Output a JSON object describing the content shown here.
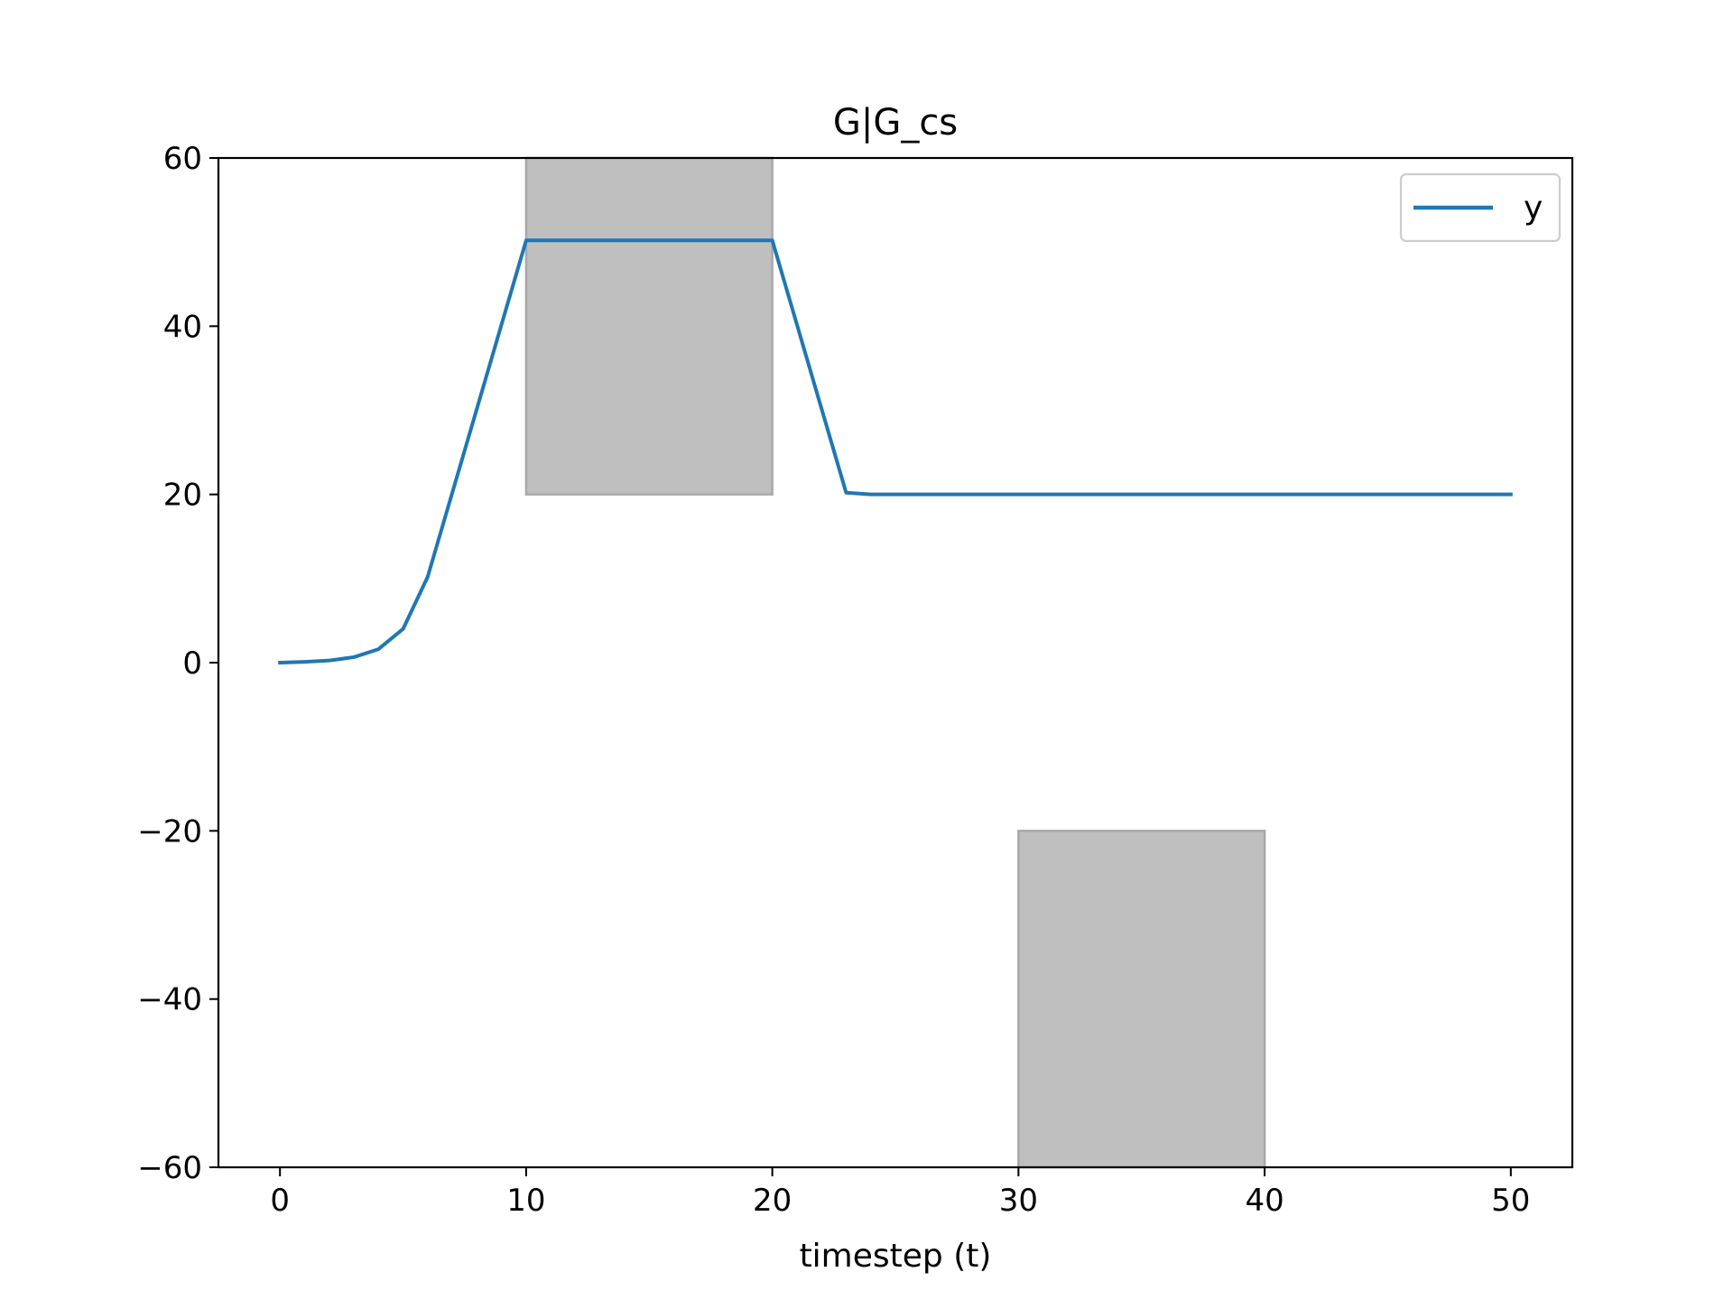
{
  "chart_data": {
    "type": "line",
    "title": "G|G_cs",
    "xlabel": "timestep (t)",
    "ylabel": "",
    "xlim": [
      -2.5,
      52.5
    ],
    "ylim": [
      -60,
      60
    ],
    "xticks": [
      0,
      10,
      20,
      30,
      40,
      50
    ],
    "yticks": [
      -60,
      -40,
      -20,
      0,
      20,
      40,
      60
    ],
    "xtick_labels": [
      "0",
      "10",
      "20",
      "30",
      "40",
      "50"
    ],
    "ytick_labels": [
      "−60",
      "−40",
      "−20",
      "0",
      "20",
      "40",
      "60"
    ],
    "grid": false,
    "legend_position": "top-right",
    "series": [
      {
        "name": "y",
        "color": "#1f77b4",
        "x": [
          0,
          1,
          2,
          3,
          4,
          5,
          6,
          7,
          8,
          9,
          10,
          11,
          12,
          13,
          14,
          15,
          16,
          17,
          18,
          19,
          20,
          21,
          22,
          23,
          24,
          25,
          26,
          27,
          28,
          29,
          30,
          31,
          32,
          33,
          34,
          35,
          36,
          37,
          38,
          39,
          40,
          41,
          42,
          43,
          44,
          45,
          46,
          47,
          48,
          49,
          50
        ],
        "y": [
          0.0,
          0.1,
          0.25,
          0.65,
          1.6,
          4.0,
          10.2,
          20.2,
          30.2,
          40.2,
          50.2,
          50.2,
          50.2,
          50.2,
          50.2,
          50.2,
          50.2,
          50.2,
          50.2,
          50.2,
          50.2,
          40.2,
          30.2,
          20.2,
          20.0,
          20.0,
          20.0,
          20.0,
          20.0,
          20.0,
          20.0,
          20.0,
          20.0,
          20.0,
          20.0,
          20.0,
          20.0,
          20.0,
          20.0,
          20.0,
          20.0,
          20.0,
          20.0,
          20.0,
          20.0,
          20.0,
          20.0,
          20.0,
          20.0,
          20.0,
          20.0
        ]
      }
    ],
    "regions": [
      {
        "x": [
          10,
          20
        ],
        "y": [
          20,
          60
        ],
        "color": "#bfbfbf"
      },
      {
        "x": [
          30,
          40
        ],
        "y": [
          -60,
          -20
        ],
        "color": "#bfbfbf"
      }
    ]
  }
}
